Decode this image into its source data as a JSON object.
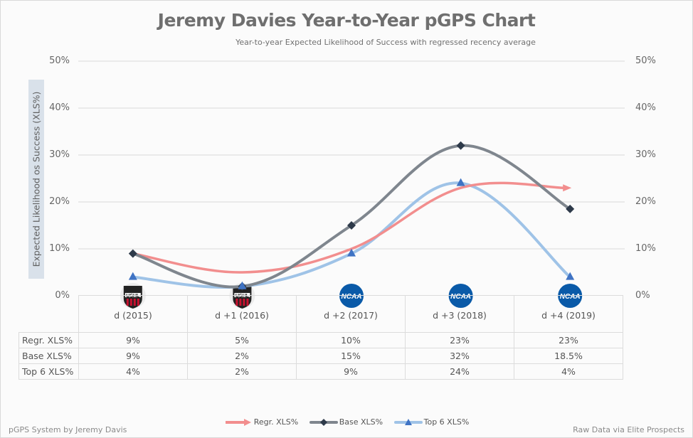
{
  "chart_data": {
    "type": "line",
    "title": "Jeremy Davies Year-to-Year pGPS Chart",
    "subtitle": "Year-to-year Expected Likelihood of Success with regressed recency average",
    "ylabel": "Expected Likelihood os Success (XLS%)",
    "xlabel": "",
    "ylim": [
      0,
      50
    ],
    "yticks": [
      "0%",
      "10%",
      "20%",
      "30%",
      "40%",
      "50%"
    ],
    "ytick_values": [
      0,
      10,
      20,
      30,
      40,
      50
    ],
    "grid": true,
    "legend_position": "bottom",
    "categories": [
      "d (2015)",
      "d +1 (2016)",
      "d +2 (2017)",
      "d +3 (2018)",
      "d +4 (2019)"
    ],
    "category_leagues": [
      "USHL",
      "USHL",
      "NCAA",
      "NCAA",
      "NCAA"
    ],
    "series": [
      {
        "name": "Regr. XLS%",
        "values": [
          9,
          5,
          10,
          23,
          23
        ],
        "labels": [
          "9%",
          "5%",
          "10%",
          "23%",
          "23%"
        ],
        "color": "#f28e8e",
        "marker": "arrow",
        "show_markers": false
      },
      {
        "name": "Base XLS%",
        "values": [
          9,
          2,
          15,
          32,
          18.5
        ],
        "labels": [
          "9%",
          "2%",
          "15%",
          "32%",
          "18.5%"
        ],
        "color": "#7f868e",
        "marker_color": "#2e3a4a",
        "marker": "diamond",
        "show_markers": true
      },
      {
        "name": "Top 6 XLS%",
        "values": [
          4,
          2,
          9,
          24,
          4
        ],
        "labels": [
          "4%",
          "2%",
          "9%",
          "24%",
          "4%"
        ],
        "color": "#9fc3e7",
        "marker_color": "#3f73c4",
        "marker": "triangle",
        "show_markers": true
      }
    ]
  },
  "footer": {
    "left": "pGPS System by Jeremy Davis",
    "right": "Raw Data via Elite Prospects"
  },
  "colors": {
    "ushl_red": "#c8102e",
    "ncaa_blue": "#0a5aa8",
    "grid": "#d9d9d9"
  }
}
